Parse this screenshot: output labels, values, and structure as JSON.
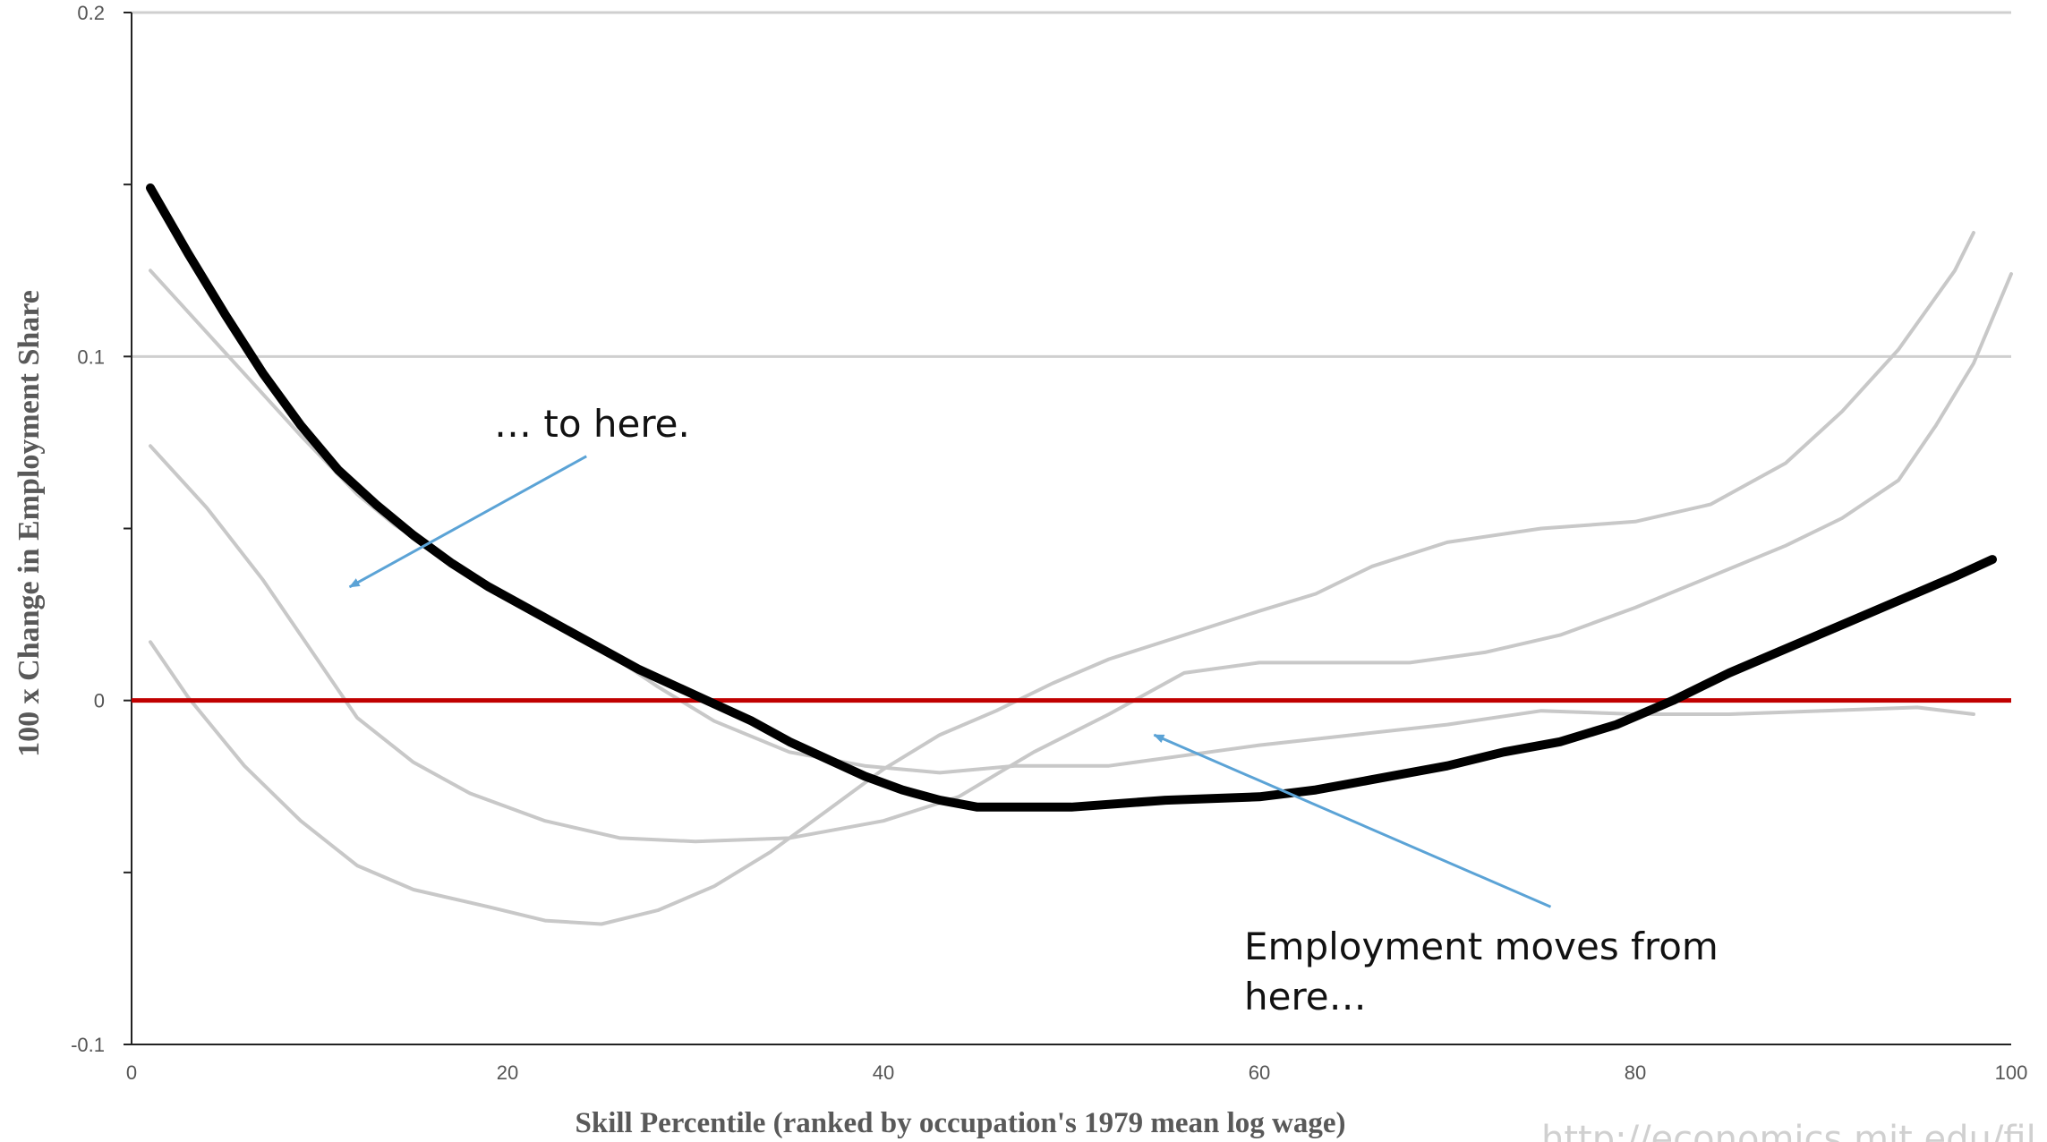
{
  "chart_data": {
    "type": "line",
    "xlabel": "Skill Percentile (ranked by occupation's 1979 mean log wage)",
    "ylabel": "100 x Change in Employment Share",
    "xlim": [
      0,
      100
    ],
    "ylim": [
      -0.1,
      0.2
    ],
    "x_ticks": [
      "0",
      "20",
      "40",
      "60",
      "80",
      "100"
    ],
    "y_ticks": [
      "-0.1",
      "0",
      "0.1",
      "0.2"
    ],
    "grid": "horizontal",
    "series": [
      {
        "role": "highlighted",
        "color": "#000000",
        "points": [
          [
            1,
            0.149
          ],
          [
            3,
            0.13
          ],
          [
            5,
            0.112
          ],
          [
            7,
            0.095
          ],
          [
            9,
            0.08
          ],
          [
            11,
            0.067
          ],
          [
            13,
            0.057
          ],
          [
            15,
            0.048
          ],
          [
            17,
            0.04
          ],
          [
            19,
            0.033
          ],
          [
            21,
            0.027
          ],
          [
            23,
            0.021
          ],
          [
            25,
            0.015
          ],
          [
            27,
            0.009
          ],
          [
            29,
            0.004
          ],
          [
            31,
            -0.001
          ],
          [
            33,
            -0.006
          ],
          [
            35,
            -0.012
          ],
          [
            37,
            -0.017
          ],
          [
            39,
            -0.022
          ],
          [
            41,
            -0.026
          ],
          [
            43,
            -0.029
          ],
          [
            45,
            -0.031
          ],
          [
            50,
            -0.031
          ],
          [
            55,
            -0.029
          ],
          [
            60,
            -0.028
          ],
          [
            63,
            -0.026
          ],
          [
            66,
            -0.023
          ],
          [
            70,
            -0.019
          ],
          [
            73,
            -0.015
          ],
          [
            76,
            -0.012
          ],
          [
            79,
            -0.007
          ],
          [
            82,
            0.0
          ],
          [
            85,
            0.008
          ],
          [
            88,
            0.015
          ],
          [
            91,
            0.022
          ],
          [
            94,
            0.029
          ],
          [
            97,
            0.036
          ],
          [
            99,
            0.041
          ]
        ]
      },
      {
        "role": "comparison",
        "color": "#c8c8c8",
        "points": [
          [
            1,
            0.125
          ],
          [
            5,
            0.101
          ],
          [
            9,
            0.077
          ],
          [
            12,
            0.06
          ],
          [
            14,
            0.051
          ],
          [
            18,
            0.037
          ],
          [
            22,
            0.025
          ],
          [
            25,
            0.015
          ],
          [
            28,
            0.004
          ],
          [
            31,
            -0.006
          ],
          [
            35,
            -0.015
          ],
          [
            39,
            -0.019
          ],
          [
            43,
            -0.021
          ],
          [
            47,
            -0.019
          ],
          [
            52,
            -0.019
          ],
          [
            56,
            -0.016
          ],
          [
            60,
            -0.013
          ],
          [
            65,
            -0.01
          ],
          [
            70,
            -0.007
          ],
          [
            75,
            -0.003
          ],
          [
            80,
            -0.004
          ],
          [
            85,
            -0.004
          ],
          [
            90,
            -0.003
          ],
          [
            95,
            -0.002
          ],
          [
            98,
            -0.004
          ]
        ]
      },
      {
        "role": "comparison",
        "color": "#c8c8c8",
        "points": [
          [
            1,
            0.074
          ],
          [
            4,
            0.056
          ],
          [
            7,
            0.035
          ],
          [
            10,
            0.011
          ],
          [
            12,
            -0.005
          ],
          [
            15,
            -0.018
          ],
          [
            18,
            -0.027
          ],
          [
            22,
            -0.035
          ],
          [
            26,
            -0.04
          ],
          [
            30,
            -0.041
          ],
          [
            35,
            -0.04
          ],
          [
            40,
            -0.035
          ],
          [
            44,
            -0.028
          ],
          [
            48,
            -0.015
          ],
          [
            52,
            -0.004
          ],
          [
            56,
            0.008
          ],
          [
            60,
            0.011
          ],
          [
            64,
            0.011
          ],
          [
            68,
            0.011
          ],
          [
            72,
            0.014
          ],
          [
            76,
            0.019
          ],
          [
            80,
            0.027
          ],
          [
            84,
            0.036
          ],
          [
            88,
            0.045
          ],
          [
            91,
            0.053
          ],
          [
            94,
            0.064
          ],
          [
            96,
            0.08
          ],
          [
            98,
            0.098
          ],
          [
            100,
            0.124
          ]
        ]
      },
      {
        "role": "comparison",
        "color": "#c8c8c8",
        "points": [
          [
            1,
            0.017
          ],
          [
            3,
            0.001
          ],
          [
            6,
            -0.019
          ],
          [
            9,
            -0.035
          ],
          [
            12,
            -0.048
          ],
          [
            15,
            -0.055
          ],
          [
            19,
            -0.06
          ],
          [
            22,
            -0.064
          ],
          [
            25,
            -0.065
          ],
          [
            28,
            -0.061
          ],
          [
            31,
            -0.054
          ],
          [
            34,
            -0.044
          ],
          [
            37,
            -0.032
          ],
          [
            40,
            -0.02
          ],
          [
            43,
            -0.01
          ],
          [
            46,
            -0.003
          ],
          [
            49,
            0.005
          ],
          [
            52,
            0.012
          ],
          [
            56,
            0.019
          ],
          [
            60,
            0.026
          ],
          [
            63,
            0.031
          ],
          [
            66,
            0.039
          ],
          [
            70,
            0.046
          ],
          [
            75,
            0.05
          ],
          [
            80,
            0.052
          ],
          [
            84,
            0.057
          ],
          [
            88,
            0.069
          ],
          [
            91,
            0.084
          ],
          [
            94,
            0.102
          ],
          [
            97,
            0.125
          ],
          [
            98,
            0.136
          ]
        ]
      }
    ],
    "reference_line": {
      "y": 0,
      "color": "#c00000"
    },
    "annotations": [
      {
        "lines": [
          "… to here."
        ],
        "arrow_color": "#5ba3d6",
        "arrow_from": [
          24.2,
          0.071
        ],
        "arrow_to": [
          11.6,
          0.033
        ]
      },
      {
        "lines": [
          "Employment moves from",
          "here…"
        ],
        "arrow_color": "#5ba3d6",
        "arrow_from": [
          75.5,
          -0.06
        ],
        "arrow_to": [
          54.4,
          -0.01
        ]
      }
    ]
  },
  "source": {
    "text": "http://economics.mit.edu/fil"
  }
}
